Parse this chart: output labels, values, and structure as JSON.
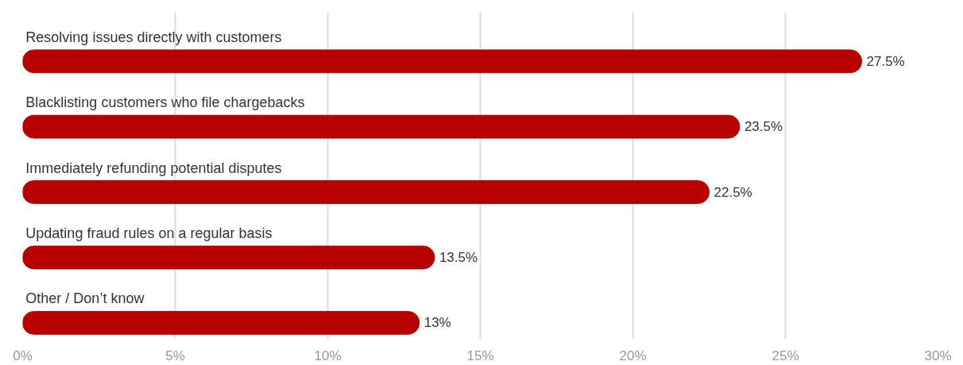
{
  "chart_data": {
    "type": "bar",
    "orientation": "horizontal",
    "categories": [
      "Resolving issues directly with customers",
      "Blacklisting customers who file chargebacks",
      "Immediately refunding potential disputes",
      "Updating fraud rules on a regular basis",
      "Other / Don’t know"
    ],
    "values": [
      27.5,
      23.5,
      22.5,
      13.5,
      13
    ],
    "value_labels": [
      "27.5%",
      "23.5%",
      "22.5%",
      "13.5%",
      "13%"
    ],
    "color": "#b80000",
    "xlim": [
      0,
      30
    ],
    "xticks": [
      {
        "value": 0,
        "label": "0%"
      },
      {
        "value": 5,
        "label": "5%"
      },
      {
        "value": 10,
        "label": "10%"
      },
      {
        "value": 15,
        "label": "15%"
      },
      {
        "value": 20,
        "label": "20%"
      },
      {
        "value": 25,
        "label": "25%"
      },
      {
        "value": 30,
        "label": "30%"
      }
    ],
    "grid": "x"
  }
}
